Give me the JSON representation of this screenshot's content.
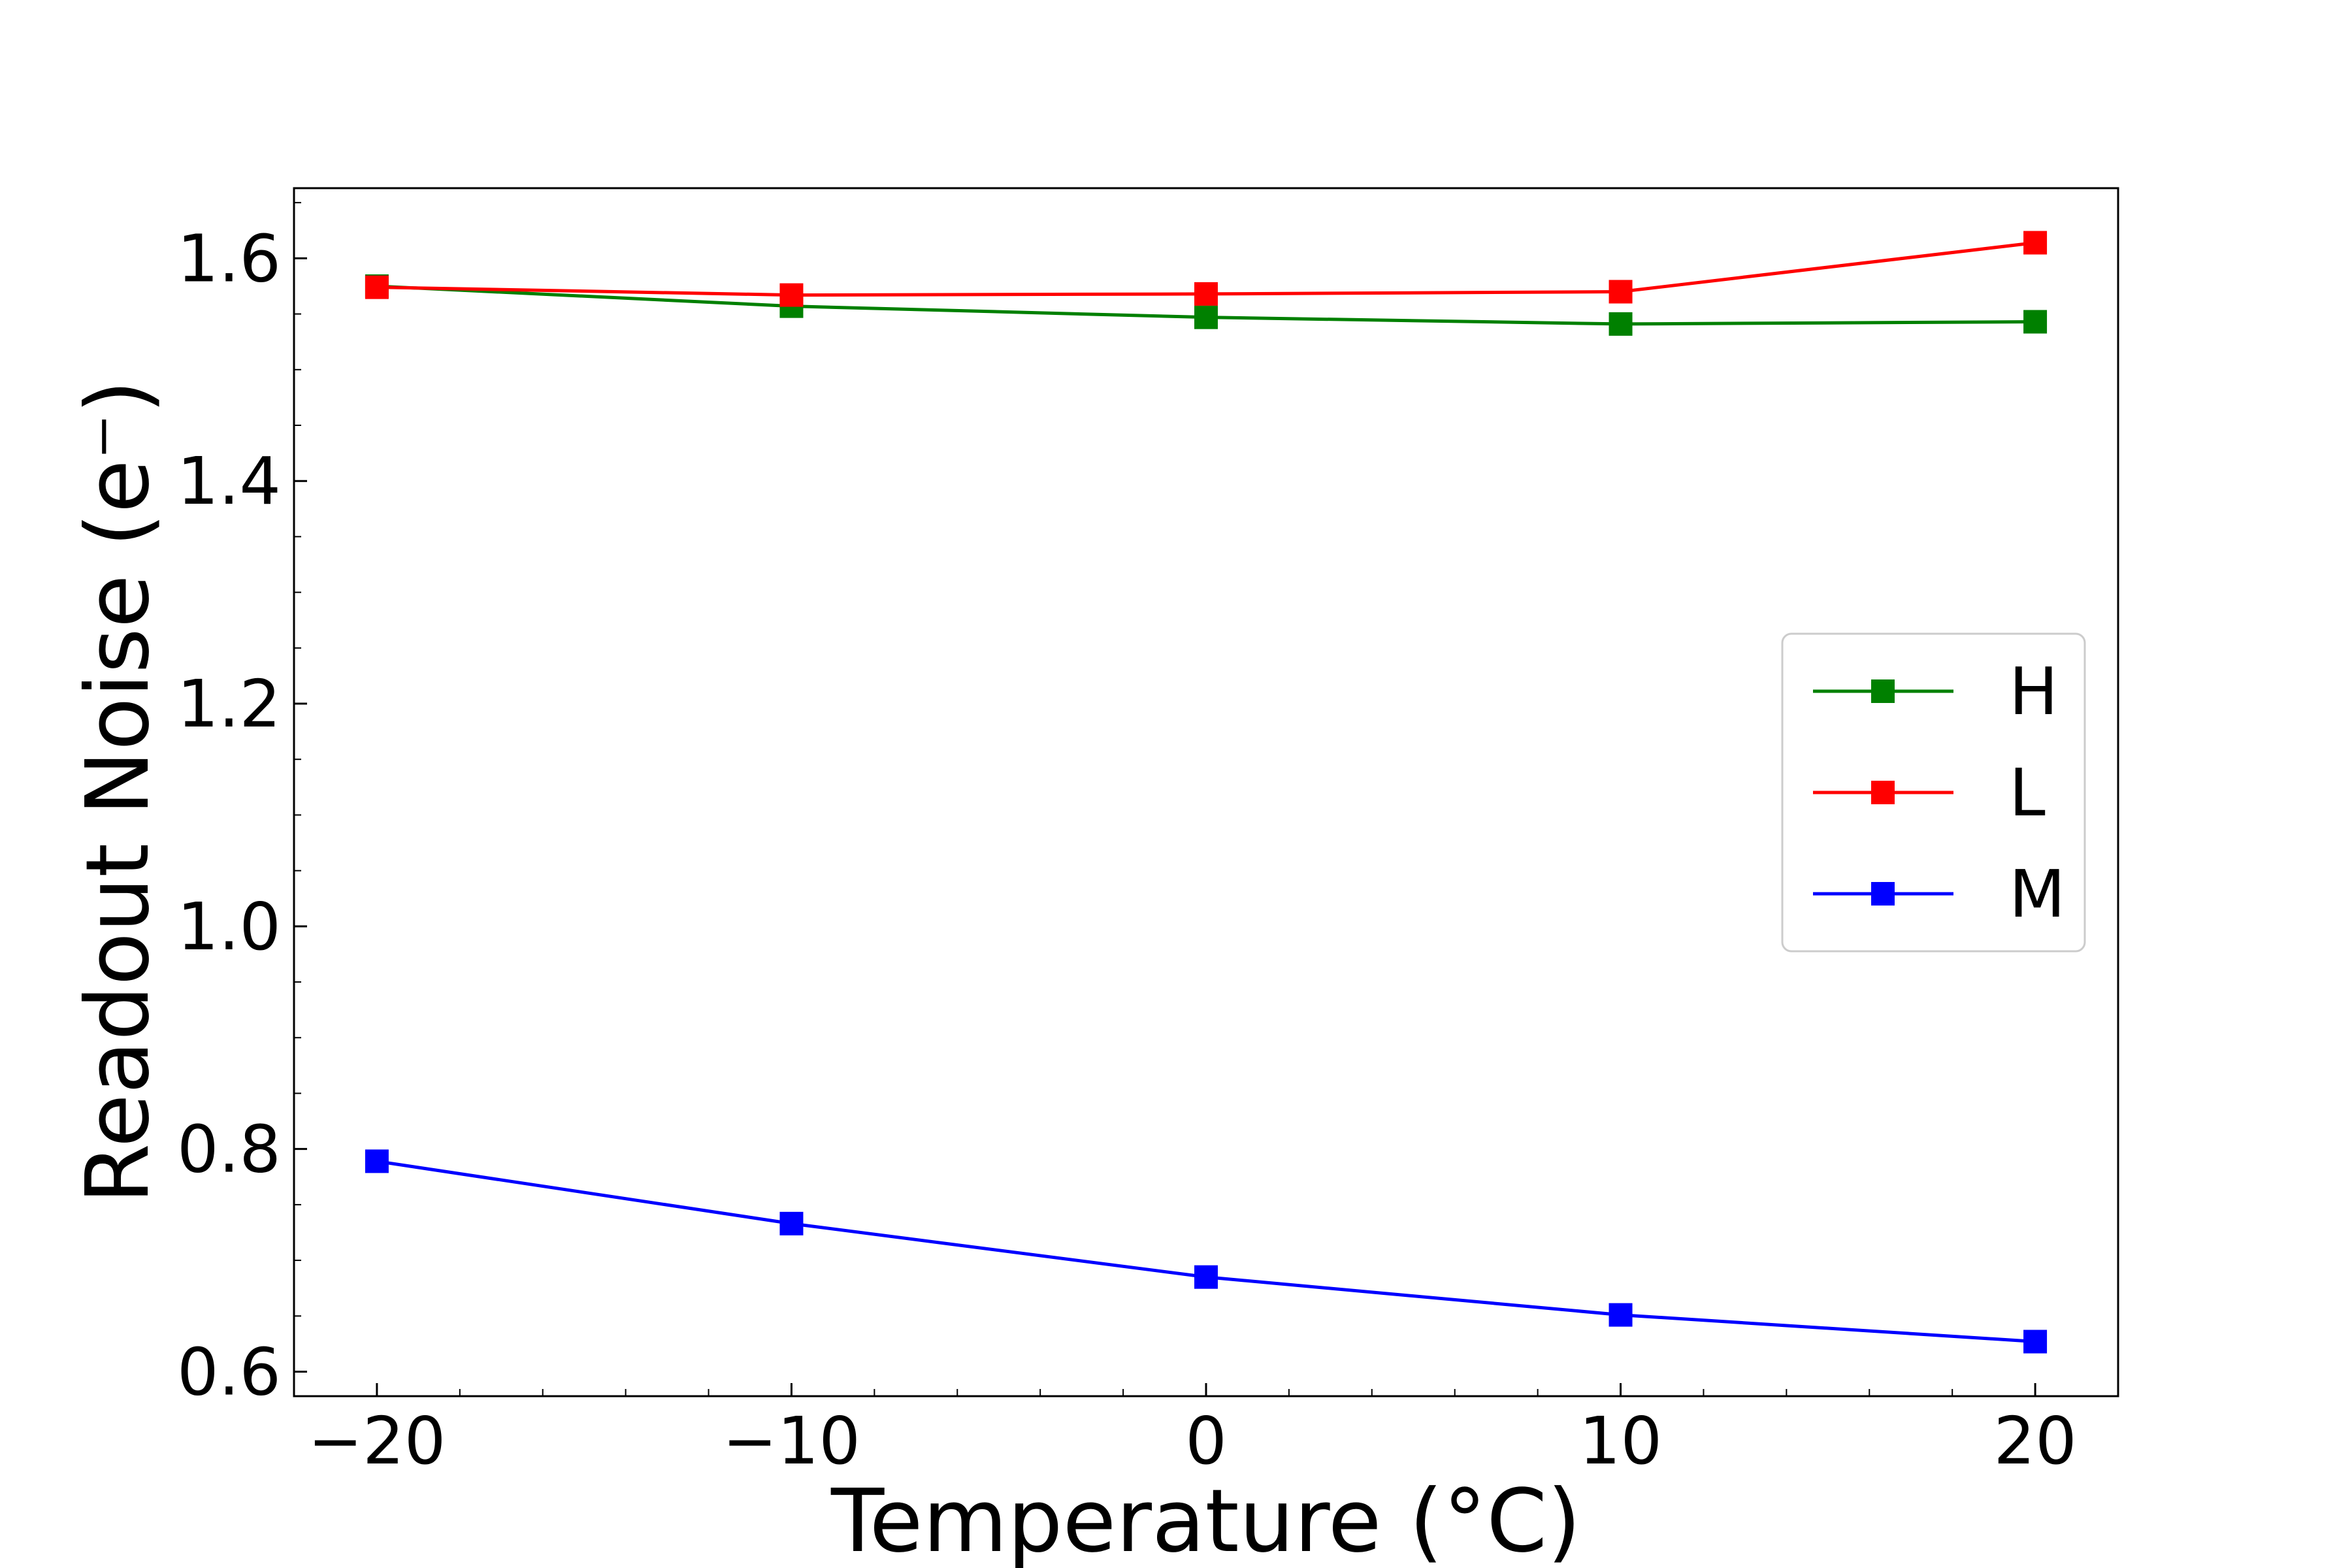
{
  "chart_data": {
    "type": "line",
    "title": "",
    "xlabel": "Temperature (°C)",
    "ylabel": "Readout Noise (e⁻)",
    "xlim": [
      -22,
      22
    ],
    "ylim": [
      0.578,
      1.663
    ],
    "x": [
      -20,
      -10,
      0,
      10,
      20
    ],
    "xticks": [
      -20,
      -10,
      0,
      10,
      20
    ],
    "xtick_labels": [
      "−20",
      "−10",
      "0",
      "10",
      "20"
    ],
    "yticks": [
      0.6,
      0.8,
      1.0,
      1.2,
      1.4,
      1.6
    ],
    "ytick_labels": [
      "0.6",
      "0.8",
      "1.0",
      "1.2",
      "1.4",
      "1.6"
    ],
    "grid": false,
    "legend_position": "center-right",
    "series": [
      {
        "name": "H",
        "color": "#008000",
        "marker": "square",
        "values": [
          1.575,
          1.557,
          1.547,
          1.541,
          1.543
        ]
      },
      {
        "name": "L",
        "color": "#ff0000",
        "marker": "square",
        "values": [
          1.574,
          1.567,
          1.568,
          1.57,
          1.614
        ]
      },
      {
        "name": "M",
        "color": "#0000ff",
        "marker": "square",
        "values": [
          0.789,
          0.733,
          0.685,
          0.651,
          0.627
        ]
      }
    ]
  }
}
